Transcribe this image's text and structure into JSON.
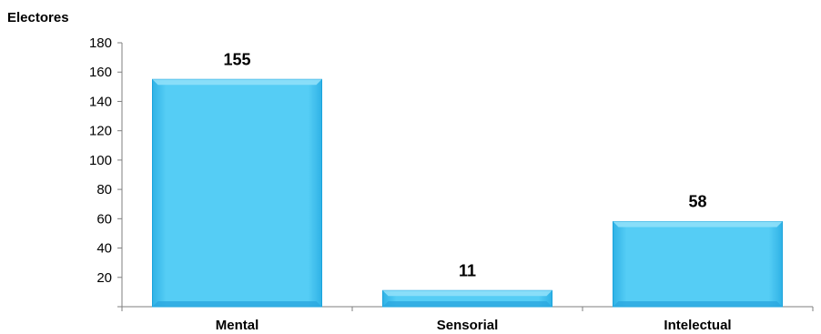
{
  "chart_data": {
    "type": "bar",
    "title": "",
    "xlabel": "",
    "ylabel": "Electores",
    "categories": [
      "Mental",
      "Sensorial",
      "Intelectual"
    ],
    "values": [
      155,
      11,
      58
    ],
    "data_labels": [
      "155",
      "11",
      "58"
    ],
    "ylim": [
      0,
      180
    ],
    "yticks": [
      20,
      40,
      60,
      80,
      100,
      120,
      140,
      160,
      180
    ],
    "grid": false,
    "legend": "none",
    "bar_color": "#55cdf5",
    "bar_edge_color": "#1aa3dc"
  }
}
